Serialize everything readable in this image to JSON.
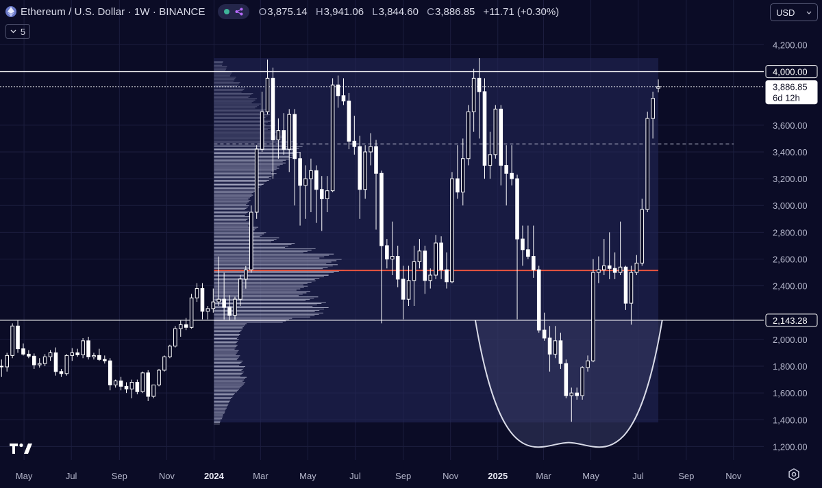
{
  "header": {
    "title": "Ethereum / U.S. Dollar · 1W · BINANCE",
    "open_label": "O",
    "open": "3,875.14",
    "high_label": "H",
    "high": "3,941.06",
    "low_label": "L",
    "low": "3,844.60",
    "close_label": "C",
    "close": "3,886.85",
    "change": "+11.71 (+0.30%)",
    "indicator_count": "5",
    "currency": "USD"
  },
  "chart_data": {
    "type": "candlestick",
    "timeframe": "1W",
    "yaxis_ticks": [
      "4,200.00",
      "3,600.00",
      "3,400.00",
      "3,200.00",
      "3,000.00",
      "2,800.00",
      "2,600.00",
      "2,400.00",
      "2,000.00",
      "1,800.00",
      "1,600.00",
      "1,400.00",
      "1,200.00"
    ],
    "xaxis_ticks": [
      {
        "label": "May",
        "date": "2023-05-01",
        "bold": false
      },
      {
        "label": "Jul",
        "date": "2023-07-01",
        "bold": false
      },
      {
        "label": "Sep",
        "date": "2023-09-01",
        "bold": false
      },
      {
        "label": "Nov",
        "date": "2023-11-01",
        "bold": false
      },
      {
        "label": "2024",
        "date": "2024-01-01",
        "bold": true
      },
      {
        "label": "Mar",
        "date": "2024-03-01",
        "bold": false
      },
      {
        "label": "May",
        "date": "2024-05-01",
        "bold": false
      },
      {
        "label": "Jul",
        "date": "2024-07-01",
        "bold": false
      },
      {
        "label": "Sep",
        "date": "2024-09-01",
        "bold": false
      },
      {
        "label": "Nov",
        "date": "2024-11-01",
        "bold": false
      },
      {
        "label": "2025",
        "date": "2025-01-01",
        "bold": true
      },
      {
        "label": "Mar",
        "date": "2025-03-01",
        "bold": false
      },
      {
        "label": "May",
        "date": "2025-05-01",
        "bold": false
      },
      {
        "label": "Jul",
        "date": "2025-07-01",
        "bold": false
      },
      {
        "label": "Sep",
        "date": "2025-09-01",
        "bold": false
      },
      {
        "label": "Nov",
        "date": "2025-11-01",
        "bold": false
      }
    ],
    "ylim": [
      1100,
      4330
    ],
    "xlim": [
      "2023-03-31",
      "2025-12-10"
    ],
    "grid": true,
    "price_labels": [
      {
        "value": 4000,
        "text": "4,000.00",
        "style": "outline"
      },
      {
        "value": 3886.85,
        "text": "3,886.85",
        "subtext": "6d 12h",
        "style": "solid"
      },
      {
        "value": 2143.28,
        "text": "2,143.28",
        "style": "outline"
      }
    ],
    "horizontal_lines": [
      {
        "value": 4000,
        "style": "solid",
        "color": "#ffffff"
      },
      {
        "value": 2143.28,
        "style": "solid",
        "color": "#ffffff"
      },
      {
        "value": 3886.85,
        "style": "dotted",
        "color": "#ffffff"
      }
    ],
    "volume_profile": {
      "range_start": "2024-01-01",
      "range_end": "2025-07-27",
      "price_range": [
        1380,
        4100
      ],
      "poc_price": 2515,
      "poc_color": "#e8543e",
      "value_area_high": 3460,
      "bins": [
        [
          4080,
          0.07
        ],
        [
          4040,
          0.1
        ],
        [
          4000,
          0.14
        ],
        [
          3960,
          0.17
        ],
        [
          3920,
          0.2
        ],
        [
          3880,
          0.24
        ],
        [
          3840,
          0.3
        ],
        [
          3800,
          0.33
        ],
        [
          3760,
          0.36
        ],
        [
          3720,
          0.4
        ],
        [
          3680,
          0.43
        ],
        [
          3640,
          0.45
        ],
        [
          3600,
          0.47
        ],
        [
          3560,
          0.5
        ],
        [
          3520,
          0.55
        ],
        [
          3480,
          0.62
        ],
        [
          3440,
          0.68
        ],
        [
          3400,
          0.66
        ],
        [
          3360,
          0.6
        ],
        [
          3320,
          0.55
        ],
        [
          3280,
          0.5
        ],
        [
          3240,
          0.48
        ],
        [
          3200,
          0.44
        ],
        [
          3160,
          0.38
        ],
        [
          3120,
          0.33
        ],
        [
          3080,
          0.3
        ],
        [
          3040,
          0.28
        ],
        [
          3000,
          0.27
        ],
        [
          2960,
          0.27
        ],
        [
          2920,
          0.28
        ],
        [
          2880,
          0.3
        ],
        [
          2840,
          0.34
        ],
        [
          2800,
          0.4
        ],
        [
          2760,
          0.5
        ],
        [
          2720,
          0.62
        ],
        [
          2680,
          0.78
        ],
        [
          2640,
          0.92
        ],
        [
          2600,
          0.98
        ],
        [
          2560,
          0.95
        ],
        [
          2520,
          1.0
        ],
        [
          2480,
          0.88
        ],
        [
          2440,
          0.78
        ],
        [
          2400,
          0.72
        ],
        [
          2360,
          0.74
        ],
        [
          2320,
          0.8
        ],
        [
          2280,
          0.86
        ],
        [
          2240,
          0.88
        ],
        [
          2200,
          0.84
        ],
        [
          2160,
          0.6
        ],
        [
          2120,
          0.25
        ],
        [
          2080,
          0.22
        ],
        [
          2040,
          0.2
        ],
        [
          2000,
          0.19
        ],
        [
          1960,
          0.18
        ],
        [
          1920,
          0.19
        ],
        [
          1880,
          0.2
        ],
        [
          1840,
          0.22
        ],
        [
          1800,
          0.24
        ],
        [
          1760,
          0.23
        ],
        [
          1720,
          0.25
        ],
        [
          1680,
          0.24
        ],
        [
          1640,
          0.2
        ],
        [
          1600,
          0.16
        ],
        [
          1560,
          0.13
        ],
        [
          1520,
          0.11
        ],
        [
          1480,
          0.09
        ],
        [
          1440,
          0.07
        ],
        [
          1400,
          0.05
        ]
      ]
    },
    "cup_pattern": {
      "left": "2024-12-03",
      "right": "2025-08-01",
      "rim_price": 2143.28,
      "bottom_price": 1230
    },
    "candles": [
      [
        "2023-04-02",
        1800,
        1850,
        1720,
        1795
      ],
      [
        "2023-04-09",
        1795,
        1900,
        1760,
        1880
      ],
      [
        "2023-04-16",
        1880,
        2120,
        1860,
        2100
      ],
      [
        "2023-04-23",
        2100,
        2140,
        1900,
        1930
      ],
      [
        "2023-04-30",
        1930,
        1970,
        1880,
        1890
      ],
      [
        "2023-05-07",
        1890,
        1920,
        1860,
        1875
      ],
      [
        "2023-05-14",
        1875,
        1895,
        1780,
        1810
      ],
      [
        "2023-05-21",
        1810,
        1860,
        1790,
        1820
      ],
      [
        "2023-05-28",
        1820,
        1890,
        1800,
        1870
      ],
      [
        "2023-06-04",
        1870,
        1920,
        1840,
        1900
      ],
      [
        "2023-06-11",
        1900,
        1940,
        1730,
        1760
      ],
      [
        "2023-06-18",
        1760,
        1780,
        1720,
        1745
      ],
      [
        "2023-06-25",
        1745,
        1890,
        1730,
        1880
      ],
      [
        "2023-07-02",
        1880,
        1935,
        1840,
        1900
      ],
      [
        "2023-07-09",
        1900,
        1930,
        1870,
        1885
      ],
      [
        "2023-07-16",
        1885,
        2010,
        1860,
        1990
      ],
      [
        "2023-07-23",
        1990,
        2020,
        1850,
        1870
      ],
      [
        "2023-07-30",
        1870,
        1900,
        1850,
        1880
      ],
      [
        "2023-08-06",
        1880,
        1930,
        1840,
        1850
      ],
      [
        "2023-08-13",
        1850,
        1880,
        1820,
        1840
      ],
      [
        "2023-08-20",
        1840,
        1860,
        1620,
        1660
      ],
      [
        "2023-08-27",
        1660,
        1700,
        1640,
        1690
      ],
      [
        "2023-09-03",
        1690,
        1720,
        1620,
        1650
      ],
      [
        "2023-09-10",
        1650,
        1680,
        1600,
        1630
      ],
      [
        "2023-09-17",
        1630,
        1700,
        1560,
        1680
      ],
      [
        "2023-09-24",
        1680,
        1700,
        1590,
        1610
      ],
      [
        "2023-10-01",
        1610,
        1760,
        1600,
        1750
      ],
      [
        "2023-10-08",
        1750,
        1770,
        1540,
        1575
      ],
      [
        "2023-10-15",
        1575,
        1660,
        1560,
        1660
      ],
      [
        "2023-10-22",
        1660,
        1780,
        1650,
        1770
      ],
      [
        "2023-10-29",
        1770,
        1880,
        1760,
        1870
      ],
      [
        "2023-11-05",
        1870,
        1960,
        1860,
        1950
      ],
      [
        "2023-11-12",
        1950,
        2100,
        1940,
        2080
      ],
      [
        "2023-11-19",
        2080,
        2140,
        2020,
        2110
      ],
      [
        "2023-11-26",
        2110,
        2160,
        2070,
        2090
      ],
      [
        "2023-12-03",
        2090,
        2340,
        2080,
        2310
      ],
      [
        "2023-12-10",
        2310,
        2420,
        2280,
        2380
      ],
      [
        "2023-12-17",
        2380,
        2420,
        2150,
        2210
      ],
      [
        "2023-12-24",
        2210,
        2250,
        2150,
        2230
      ],
      [
        "2023-12-31",
        2230,
        2380,
        2200,
        2280
      ],
      [
        "2024-01-07",
        2280,
        2620,
        2250,
        2300
      ],
      [
        "2024-01-14",
        2300,
        2500,
        2150,
        2240
      ],
      [
        "2024-01-21",
        2240,
        2330,
        2140,
        2180
      ],
      [
        "2024-01-28",
        2180,
        2320,
        2150,
        2300
      ],
      [
        "2024-02-04",
        2300,
        2480,
        2250,
        2450
      ],
      [
        "2024-02-11",
        2450,
        2550,
        2380,
        2520
      ],
      [
        "2024-02-18",
        2520,
        3000,
        2500,
        2950
      ],
      [
        "2024-02-25",
        2950,
        3450,
        2900,
        3420
      ],
      [
        "2024-03-03",
        3420,
        3850,
        3400,
        3700
      ],
      [
        "2024-03-10",
        3700,
        4090,
        3680,
        3950
      ],
      [
        "2024-03-17",
        3950,
        4030,
        3200,
        3490
      ],
      [
        "2024-03-24",
        3490,
        3650,
        3350,
        3560
      ],
      [
        "2024-03-31",
        3560,
        3690,
        3380,
        3420
      ],
      [
        "2024-04-07",
        3420,
        3720,
        3250,
        3680
      ],
      [
        "2024-04-14",
        3680,
        3720,
        3000,
        3350
      ],
      [
        "2024-04-21",
        3350,
        3400,
        2850,
        3150
      ],
      [
        "2024-04-28",
        3150,
        3300,
        2900,
        3200
      ],
      [
        "2024-05-05",
        3200,
        3350,
        2950,
        3260
      ],
      [
        "2024-05-12",
        3260,
        3300,
        2870,
        3120
      ],
      [
        "2024-05-19",
        3120,
        3220,
        2810,
        3050
      ],
      [
        "2024-05-26",
        3050,
        3220,
        2950,
        3110
      ],
      [
        "2024-06-02",
        3110,
        3950,
        3100,
        3900
      ],
      [
        "2024-06-09",
        3900,
        3970,
        3730,
        3820
      ],
      [
        "2024-06-16",
        3820,
        3950,
        3750,
        3780
      ],
      [
        "2024-06-23",
        3780,
        3840,
        3420,
        3480
      ],
      [
        "2024-06-30",
        3480,
        3670,
        3380,
        3440
      ],
      [
        "2024-07-07",
        3440,
        3520,
        2900,
        3120
      ],
      [
        "2024-07-14",
        3120,
        3450,
        3050,
        3400
      ],
      [
        "2024-07-21",
        3400,
        3540,
        3300,
        3440
      ],
      [
        "2024-07-28",
        3440,
        3490,
        2820,
        3240
      ],
      [
        "2024-08-04",
        3240,
        3260,
        2120,
        2700
      ],
      [
        "2024-08-11",
        2700,
        2750,
        2530,
        2600
      ],
      [
        "2024-08-18",
        2600,
        2880,
        2480,
        2620
      ],
      [
        "2024-08-25",
        2620,
        2700,
        2390,
        2450
      ],
      [
        "2024-09-01",
        2450,
        2550,
        2150,
        2300
      ],
      [
        "2024-09-08",
        2300,
        2550,
        2250,
        2440
      ],
      [
        "2024-09-15",
        2440,
        2700,
        2250,
        2580
      ],
      [
        "2024-09-22",
        2580,
        2750,
        2530,
        2660
      ],
      [
        "2024-09-29",
        2660,
        2700,
        2340,
        2440
      ],
      [
        "2024-10-06",
        2440,
        2530,
        2380,
        2480
      ],
      [
        "2024-10-13",
        2480,
        2780,
        2450,
        2720
      ],
      [
        "2024-10-20",
        2720,
        2770,
        2450,
        2520
      ],
      [
        "2024-10-27",
        2520,
        2650,
        2380,
        2430
      ],
      [
        "2024-11-03",
        2430,
        3250,
        2420,
        3200
      ],
      [
        "2024-11-10",
        3200,
        3450,
        3050,
        3100
      ],
      [
        "2024-11-17",
        3100,
        3500,
        3000,
        3350
      ],
      [
        "2024-11-24",
        3350,
        3750,
        3300,
        3700
      ],
      [
        "2024-12-01",
        3700,
        4020,
        3550,
        3950
      ],
      [
        "2024-12-08",
        3950,
        4100,
        3500,
        3850
      ],
      [
        "2024-12-15",
        3850,
        3950,
        3200,
        3300
      ],
      [
        "2024-12-22",
        3300,
        3550,
        3200,
        3380
      ],
      [
        "2024-12-29",
        3380,
        3750,
        3350,
        3720
      ],
      [
        "2025-01-05",
        3720,
        3750,
        3150,
        3300
      ],
      [
        "2025-01-12",
        3300,
        3450,
        3000,
        3240
      ],
      [
        "2025-01-19",
        3240,
        3450,
        3150,
        3200
      ],
      [
        "2025-01-26",
        3200,
        3230,
        2150,
        2750
      ],
      [
        "2025-02-02",
        2750,
        2850,
        2550,
        2670
      ],
      [
        "2025-02-09",
        2670,
        2850,
        2600,
        2620
      ],
      [
        "2025-02-16",
        2620,
        2850,
        2460,
        2520
      ],
      [
        "2025-02-23",
        2520,
        2550,
        2050,
        2070
      ],
      [
        "2025-03-02",
        2070,
        2200,
        1990,
        2010
      ],
      [
        "2025-03-09",
        2010,
        2100,
        1760,
        1890
      ],
      [
        "2025-03-16",
        1890,
        2100,
        1860,
        1990
      ],
      [
        "2025-03-23",
        1990,
        2050,
        1780,
        1820
      ],
      [
        "2025-03-30",
        1820,
        1850,
        1560,
        1580
      ],
      [
        "2025-04-06",
        1580,
        1640,
        1385,
        1600
      ],
      [
        "2025-04-13",
        1600,
        1640,
        1550,
        1580
      ],
      [
        "2025-04-20",
        1580,
        1800,
        1550,
        1790
      ],
      [
        "2025-04-27",
        1790,
        1880,
        1760,
        1840
      ],
      [
        "2025-05-04",
        1840,
        2600,
        1830,
        2500
      ],
      [
        "2025-05-11",
        2500,
        2620,
        2420,
        2520
      ],
      [
        "2025-05-18",
        2520,
        2750,
        2480,
        2550
      ],
      [
        "2025-05-25",
        2550,
        2800,
        2450,
        2530
      ],
      [
        "2025-06-01",
        2530,
        2650,
        2450,
        2500
      ],
      [
        "2025-06-08",
        2500,
        2880,
        2480,
        2540
      ],
      [
        "2025-06-15",
        2540,
        2550,
        2220,
        2270
      ],
      [
        "2025-06-22",
        2270,
        2550,
        2110,
        2500
      ],
      [
        "2025-06-29",
        2500,
        2630,
        2480,
        2570
      ],
      [
        "2025-07-06",
        2570,
        3050,
        2550,
        2970
      ],
      [
        "2025-07-13",
        2970,
        3700,
        2950,
        3650
      ],
      [
        "2025-07-20",
        3650,
        3850,
        3500,
        3800
      ],
      [
        "2025-07-27",
        3875.14,
        3941.06,
        3844.6,
        3886.85
      ]
    ]
  }
}
